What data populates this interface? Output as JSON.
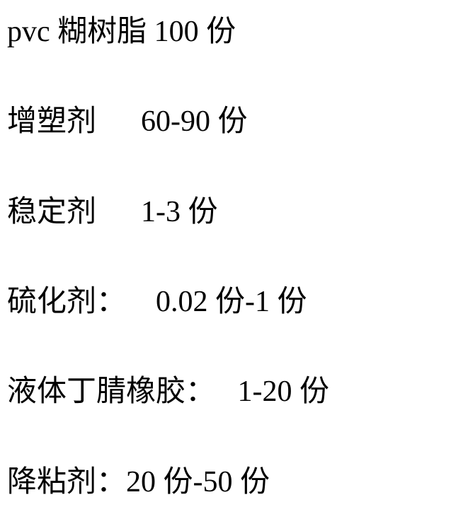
{
  "ingredients": [
    {
      "label": "pvc 糊树脂",
      "amount": "100 份",
      "spacing": " "
    },
    {
      "label": "增塑剂",
      "amount": "60-90 份",
      "spacing": "      "
    },
    {
      "label": "稳定剂",
      "amount": "1-3 份",
      "spacing": "      "
    },
    {
      "label": "硫化剂：",
      "amount": "0.02 份-1 份",
      "spacing": "    "
    },
    {
      "label": "液体丁腈橡胶：",
      "amount": "1-20 份",
      "spacing": "   "
    },
    {
      "label": "降粘剂：",
      "amount": "20 份-50 份",
      "spacing": ""
    }
  ],
  "styling": {
    "font_size": 42,
    "font_family": "SimSun",
    "text_color": "#000000",
    "background_color": "#ffffff",
    "line_height": 1.2
  }
}
